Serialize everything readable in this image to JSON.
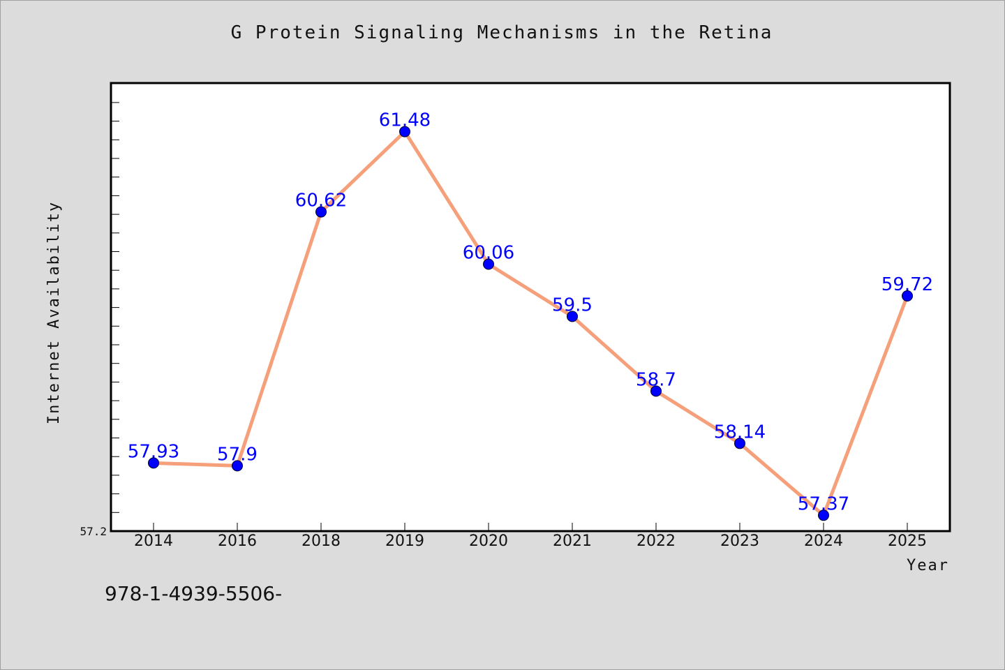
{
  "chart_data": {
    "type": "line",
    "title": "G Protein Signaling Mechanisms in the Retina",
    "xlabel": "Year",
    "ylabel": "Internet Availability",
    "categories": [
      "2014",
      "2016",
      "2018",
      "2019",
      "2020",
      "2021",
      "2022",
      "2023",
      "2024",
      "2025"
    ],
    "series": [
      {
        "values": [
          57.93,
          57.9,
          60.62,
          61.48,
          60.06,
          59.5,
          58.7,
          58.14,
          57.37,
          59.72
        ],
        "labels": [
          "57.93",
          "57.9",
          "60.62",
          "61.48",
          "60.06",
          "59.5",
          "58.7",
          "58.14",
          "57.37",
          "59.72"
        ],
        "line_color": "#f5a07a",
        "marker_color": "#0000ff"
      }
    ],
    "ylim": [
      57.2,
      62.0
    ],
    "y_min_label": "57.2",
    "grid": false,
    "legend": "none"
  },
  "footer": {
    "text": "978-1-4939-5506-"
  }
}
